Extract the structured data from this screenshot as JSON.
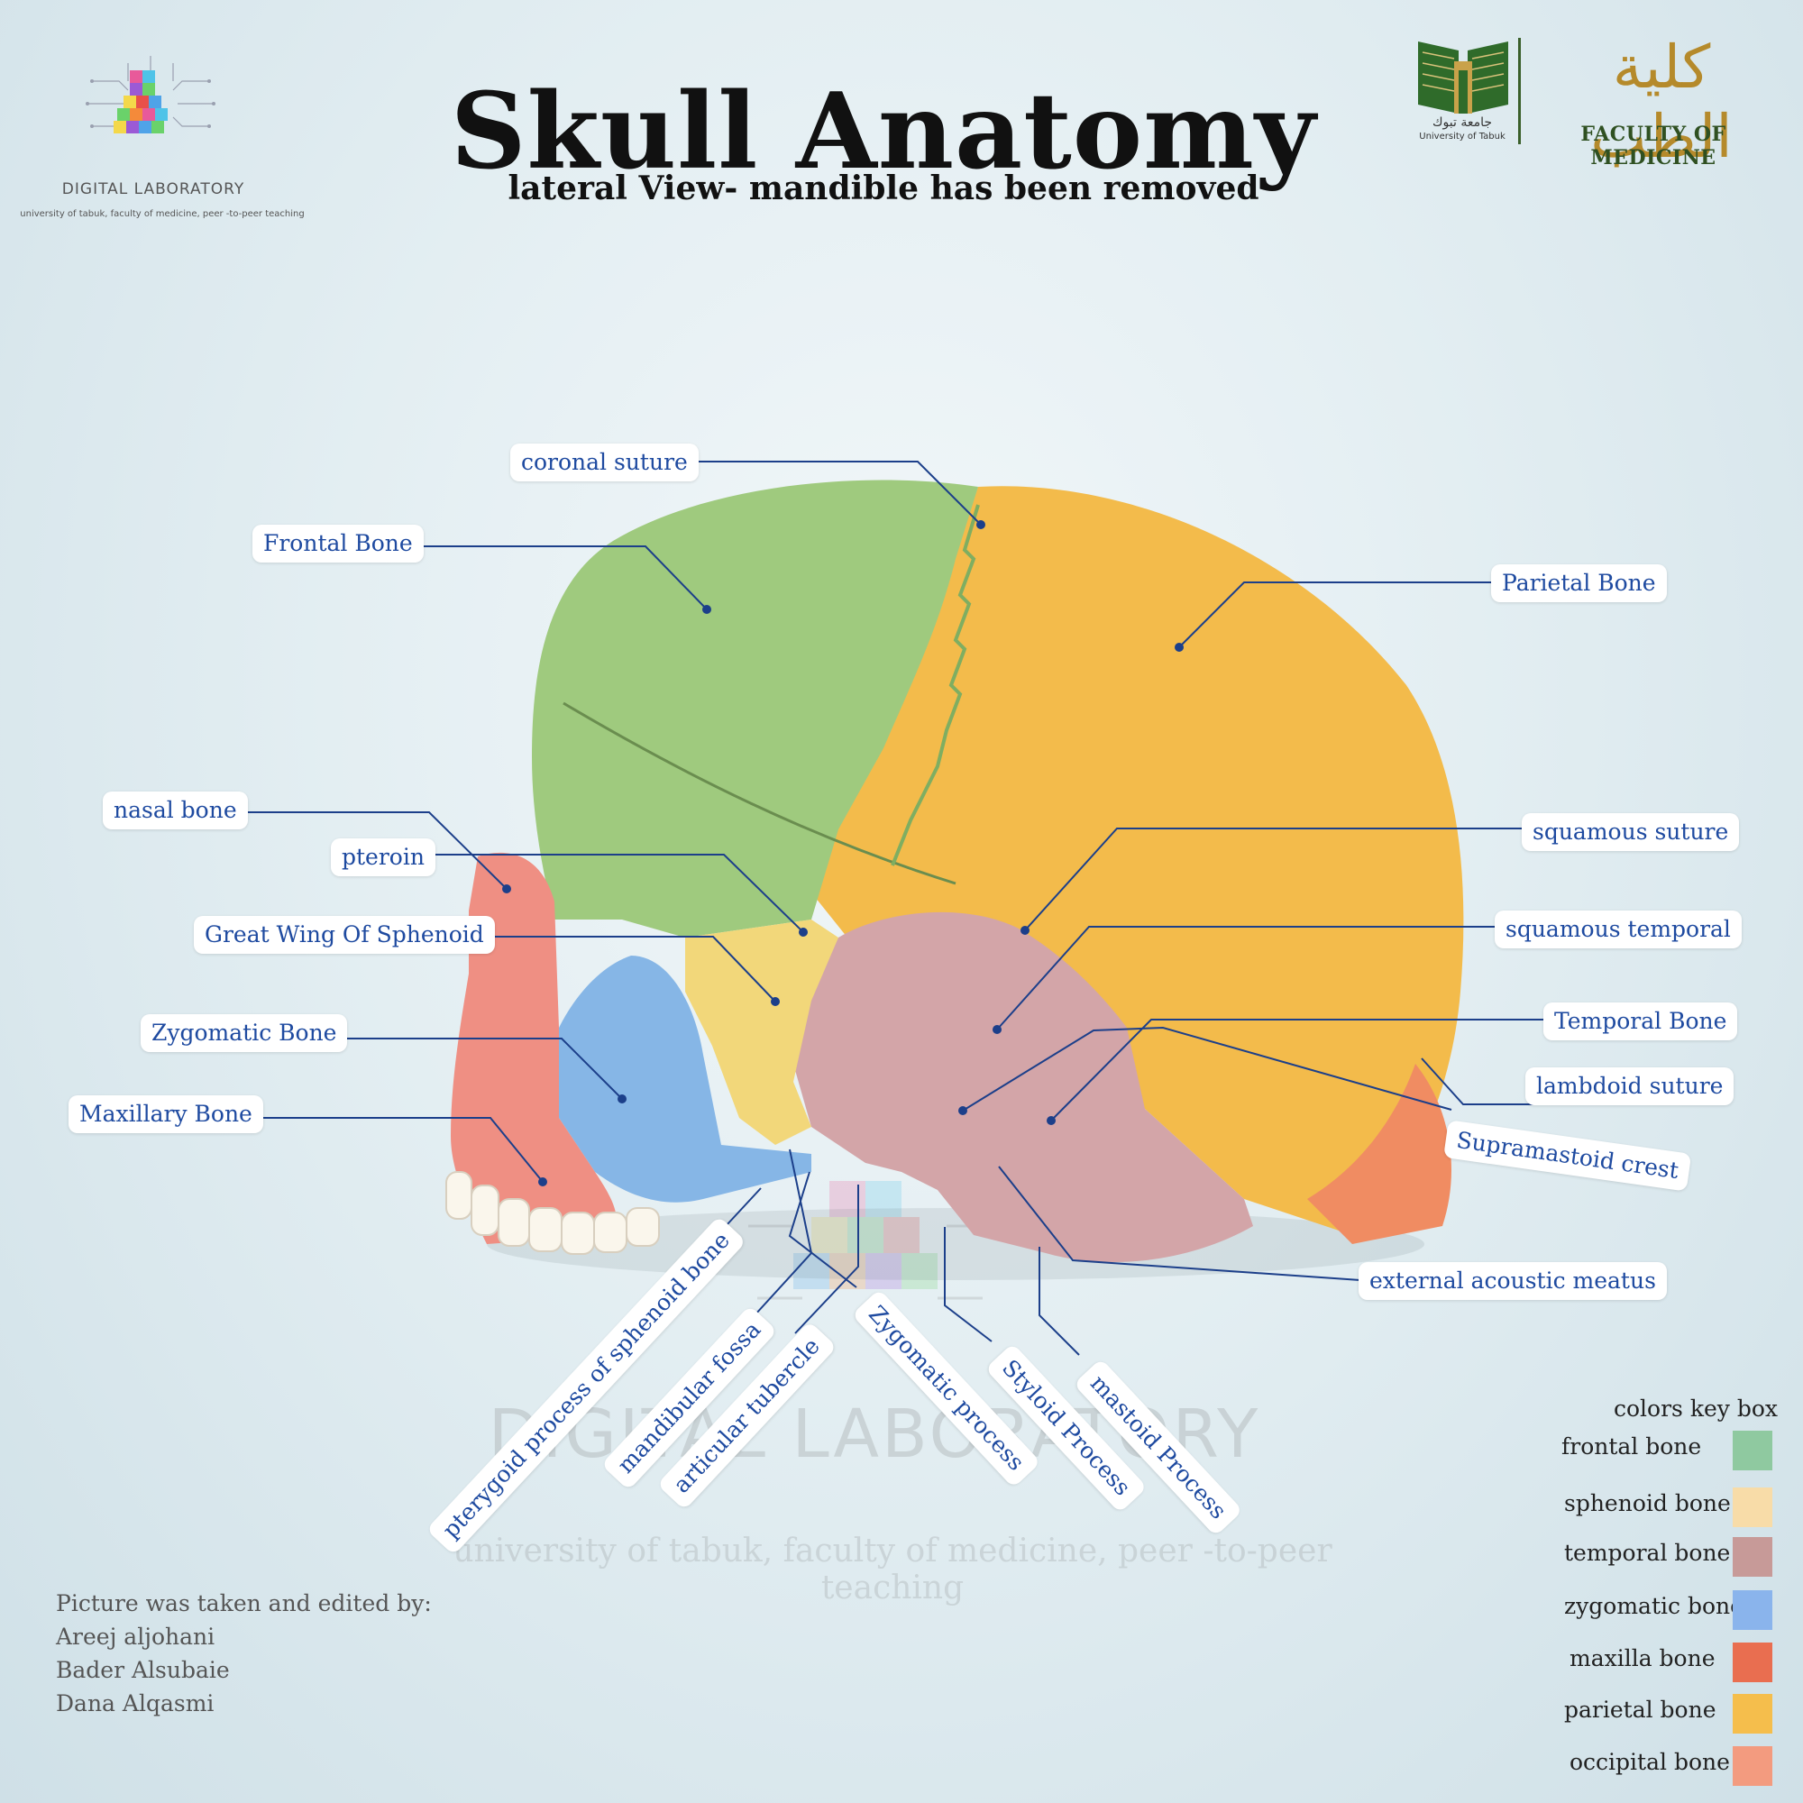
{
  "header": {
    "title": "Skull Anatomy",
    "subtitle": "lateral View- mandible has been removed"
  },
  "brand": {
    "name": "DIGITAL LABORATORY",
    "tagline": "university of tabuk, faculty of medicine, peer -to-peer teaching"
  },
  "faculty": {
    "arabic_name": "كلية الطب",
    "english_name": "FACULTY OF MEDICINE",
    "university_arabic": "جامعة تبوك",
    "university_english": "University of Tabuk"
  },
  "labels": {
    "coronal_suture": "coronal suture",
    "frontal_bone": "Frontal Bone",
    "parietal_bone": "Parietal Bone",
    "nasal_bone": "nasal bone",
    "pterion": "pteroin",
    "great_wing": "Great Wing Of Sphenoid",
    "zygomatic_bone": "Zygomatic Bone",
    "maxillary_bone": "Maxillary Bone",
    "squamous_suture": "squamous suture",
    "squamous_temporal": "squamous temporal",
    "temporal_bone": "Temporal Bone",
    "lambdoid_suture": "lambdoid suture",
    "supramastoid_crest": "Supramastoid crest",
    "external_acoustic_meatus": "external acoustic meatus",
    "pterygoid_process": "pterygoid process of sphenoid bone",
    "mandibular_fossa": "mandibular fossa",
    "articular_tubercle": "articular tubercle",
    "zygomatic_process": "Zygomatic process",
    "styloid_process": "Styloid Process",
    "mastoid_process": "mastoid Process"
  },
  "color_key": {
    "title": "colors key box",
    "items": [
      {
        "label": "frontal bone",
        "color": "#8fc9a0"
      },
      {
        "label": "sphenoid bone",
        "color": "#f8dca8"
      },
      {
        "label": "temporal bone",
        "color": "#c79a98"
      },
      {
        "label": "zygomatic bone",
        "color": "#8ab4ec"
      },
      {
        "label": "maxilla bone",
        "color": "#e96e50"
      },
      {
        "label": "parietal bone",
        "color": "#f5be4c"
      },
      {
        "label": "occipital bone",
        "color": "#f39b7f"
      }
    ]
  },
  "credits": {
    "heading": "Picture was taken and edited by:",
    "names": [
      "Areej aljohani",
      "Bader Alsubaie",
      "Dana Alqasmi"
    ]
  },
  "palette": {
    "frontal": "#9fca7e",
    "parietal": "#f3bb4b",
    "temporal": "#d3a5a8",
    "zygomatic": "#86b6e6",
    "maxilla": "#ef8f83",
    "sphenoid": "#f2d77a",
    "occipital": "#f08c62",
    "label_text": "#1e4aa0",
    "leader_line": "#1c3f8a"
  }
}
